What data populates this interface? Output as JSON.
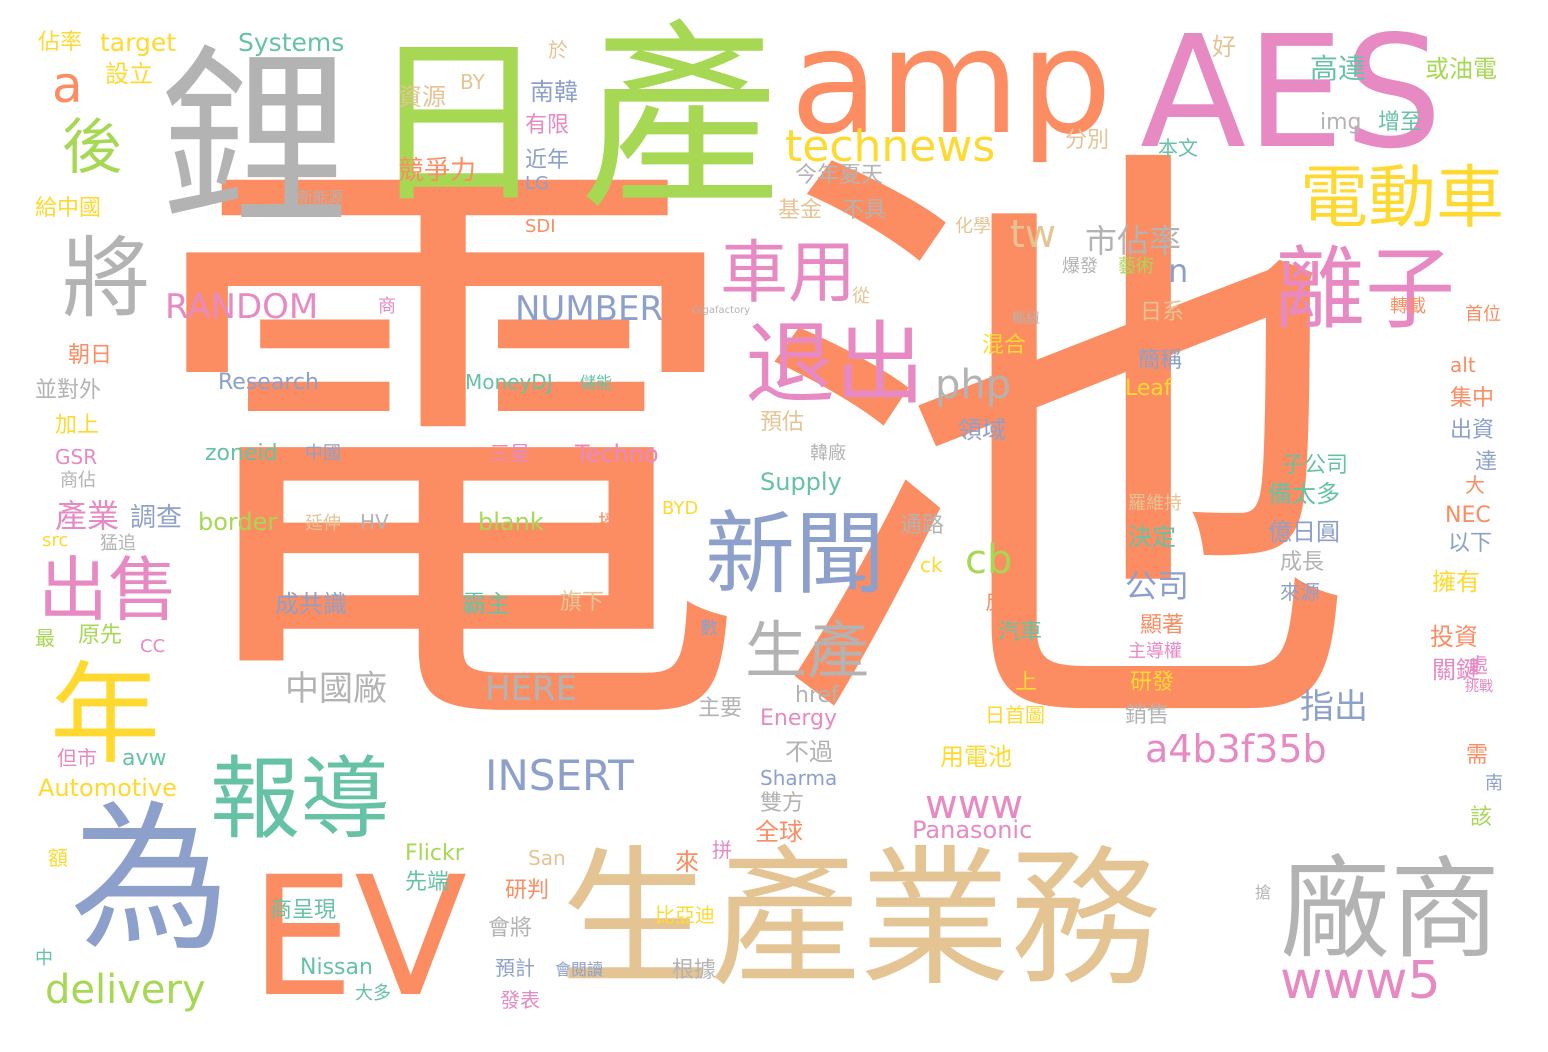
{
  "palette": {
    "orange": "#fc8d62",
    "green": "#a6d854",
    "gray": "#b3b3b3",
    "blue": "#8da0cb",
    "pink": "#e78ac3",
    "teal": "#66c2a5",
    "yellow": "#ffd92f",
    "tan": "#e5c494"
  },
  "words": [
    "電池",
    "產",
    "鋰",
    "amp",
    "日",
    "AES",
    "生產業務",
    "EV",
    "為",
    "廠商",
    "報導",
    "新聞",
    "退出",
    "離子",
    "電動車",
    "將",
    "年",
    "出售",
    "車用",
    "technews",
    "後",
    "a",
    "生產",
    "www5",
    "a4b3f35b",
    "www",
    "INSERT",
    "php",
    "RANDOM",
    "NUMBER",
    "HERE",
    "中國廠",
    "成共識",
    "市佔率",
    "tw",
    "cb",
    "n",
    "delivery",
    "產業",
    "調查",
    "border",
    "指出",
    "公司",
    "Systems",
    "target",
    "設立",
    "佔率",
    "資源",
    "BY",
    "南韓",
    "有限",
    "近年",
    "LG",
    "競爭力",
    "分別",
    "今年夏天",
    "img",
    "增至",
    "本文",
    "高達",
    "或油電",
    "好",
    "於",
    "基金",
    "不具",
    "SDI",
    "給中國",
    "新能源",
    "化學",
    "爆發",
    "藝術",
    "車",
    "日系",
    "轉載",
    "首位",
    "朝日",
    "並對外",
    "加上",
    "GSR",
    "商佔",
    "Research",
    "MoneyDJ",
    "儲能",
    "zoneid",
    "中國",
    "三星",
    "Techno",
    "預估",
    "韓廠",
    "領域",
    "混合",
    "簡稱",
    "Leaf",
    "alt",
    "集中",
    "出資",
    "達",
    "子公司",
    "備太多",
    "決定",
    "億日圓",
    "成長",
    "來源",
    "羅維持",
    "通路",
    "延伸",
    "HV",
    "blank",
    "授權",
    "BYD",
    "src",
    "猛追",
    "Supply",
    "ck",
    "最",
    "原先",
    "CC",
    "反觀",
    "霸主",
    "旗下",
    "數",
    "汽車",
    "顯著",
    "主導權",
    "投資",
    "擁有",
    "NEC",
    "以下",
    "大",
    "關鍵",
    "處",
    "挑戰",
    "主要",
    "href",
    "Energy",
    "研發",
    "銷售",
    "上",
    "日首圖",
    "用電池",
    "不過",
    "但市",
    "avw",
    "Automotive",
    "Sharma",
    "雙方",
    "全球",
    "Panasonic",
    "額",
    "拼",
    "來",
    "Flickr",
    "San",
    "先端",
    "研判",
    "商呈現",
    "比亞迪",
    "會將",
    "預計",
    "會閱讀",
    "根據",
    "發表",
    "大多",
    "Nissan",
    "中",
    "搶",
    "需",
    "南",
    "該",
    "Gigafactory",
    "商",
    "樞紐",
    "從"
  ]
}
